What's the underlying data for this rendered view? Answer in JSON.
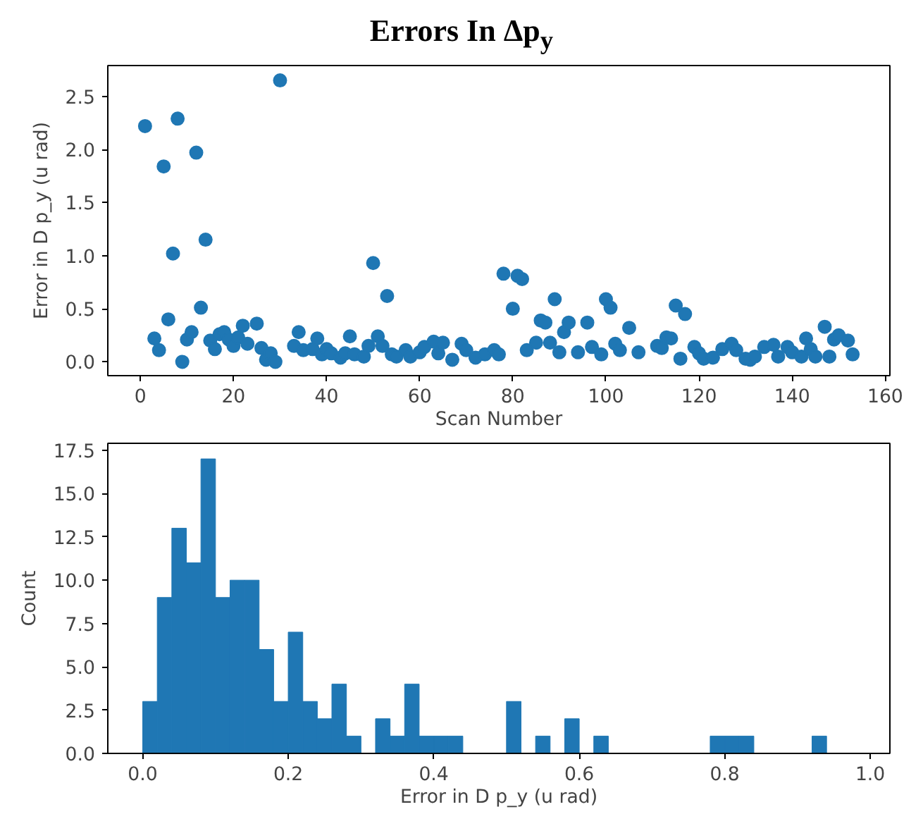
{
  "chart_data": [
    {
      "type": "scatter",
      "title": "Errors In Δp$_{y}$",
      "xlabel": "Scan Number",
      "ylabel": "Error in D p_y (u rad)",
      "marker": "circle",
      "grid": false,
      "xlim": [
        -7,
        161
      ],
      "xticks": [
        0,
        20,
        40,
        60,
        80,
        100,
        120,
        140,
        160
      ],
      "ylim": [
        -0.13,
        2.79
      ],
      "yticks": [
        {
          "value": 0,
          "label": "0.0"
        },
        {
          "value": 0.5,
          "label": "0.5"
        },
        {
          "value": 1,
          "label": "1.0"
        },
        {
          "value": 1.5,
          "label": "1.5"
        },
        {
          "value": 2,
          "label": "2.0"
        },
        {
          "value": 2.5,
          "label": "2.5"
        }
      ],
      "series": [
        {
          "color": "#1f77b4",
          "x": [
            1,
            3,
            4,
            5,
            6,
            7,
            8,
            9,
            10,
            11,
            12,
            13,
            14,
            15,
            16,
            17,
            18,
            19,
            20,
            21,
            22,
            23,
            25,
            26,
            27,
            28,
            29,
            30,
            33,
            34,
            35,
            37,
            38,
            39,
            40,
            41,
            43,
            44,
            45,
            46,
            48,
            49,
            50,
            51,
            52,
            53,
            54,
            55,
            57,
            58,
            60,
            61,
            63,
            64,
            65,
            67,
            69,
            70,
            72,
            74,
            76,
            77,
            78,
            80,
            81,
            82,
            83,
            85,
            86,
            87,
            88,
            89,
            90,
            91,
            92,
            94,
            96,
            97,
            99,
            100,
            101,
            102,
            103,
            105,
            107,
            111,
            112,
            113,
            114,
            115,
            116,
            117,
            119,
            120,
            121,
            123,
            125,
            127,
            128,
            130,
            131,
            132,
            134,
            136,
            137,
            139,
            140,
            142,
            143,
            144,
            145,
            147,
            148,
            149,
            150,
            152,
            153
          ],
          "values": [
            2.22,
            0.22,
            0.11,
            1.84,
            0.4,
            1.02,
            2.29,
            0.0,
            0.21,
            0.28,
            1.97,
            0.51,
            1.15,
            0.2,
            0.12,
            0.26,
            0.28,
            0.21,
            0.15,
            0.23,
            0.34,
            0.17,
            0.36,
            0.13,
            0.02,
            0.08,
            0.0,
            2.65,
            0.15,
            0.28,
            0.11,
            0.12,
            0.22,
            0.07,
            0.12,
            0.08,
            0.04,
            0.08,
            0.24,
            0.07,
            0.05,
            0.15,
            0.93,
            0.24,
            0.15,
            0.62,
            0.07,
            0.05,
            0.11,
            0.05,
            0.09,
            0.14,
            0.19,
            0.08,
            0.18,
            0.02,
            0.17,
            0.11,
            0.04,
            0.07,
            0.11,
            0.07,
            0.83,
            0.5,
            0.81,
            0.78,
            0.11,
            0.18,
            0.39,
            0.37,
            0.18,
            0.59,
            0.09,
            0.28,
            0.37,
            0.09,
            0.37,
            0.14,
            0.07,
            0.59,
            0.51,
            0.17,
            0.11,
            0.32,
            0.09,
            0.15,
            0.13,
            0.23,
            0.22,
            0.53,
            0.03,
            0.45,
            0.14,
            0.08,
            0.03,
            0.04,
            0.12,
            0.17,
            0.11,
            0.03,
            0.02,
            0.05,
            0.14,
            0.16,
            0.05,
            0.14,
            0.09,
            0.05,
            0.22,
            0.12,
            0.05,
            0.33,
            0.05,
            0.21,
            0.25,
            0.2,
            0.07
          ]
        }
      ]
    },
    {
      "type": "histogram",
      "xlabel": "Error in D p_y (u rad)",
      "ylabel": "Count",
      "color": "#1f77b4",
      "grid": false,
      "xlim": [
        -0.048,
        1.027
      ],
      "xticks": [
        {
          "value": 0,
          "label": "0.0"
        },
        {
          "value": 0.2,
          "label": "0.2"
        },
        {
          "value": 0.4,
          "label": "0.4"
        },
        {
          "value": 0.6,
          "label": "0.6"
        },
        {
          "value": 0.8,
          "label": "0.8"
        },
        {
          "value": 1,
          "label": "1.0"
        }
      ],
      "ylim": [
        0,
        17.9
      ],
      "yticks": [
        {
          "value": 0,
          "label": "0.0"
        },
        {
          "value": 2.5,
          "label": "2.5"
        },
        {
          "value": 5,
          "label": "5.0"
        },
        {
          "value": 7.5,
          "label": "7.5"
        },
        {
          "value": 10,
          "label": "10.0"
        },
        {
          "value": 12.5,
          "label": "12.5"
        },
        {
          "value": 15,
          "label": "15.0"
        },
        {
          "value": 17.5,
          "label": "17.5"
        }
      ],
      "bins": [
        0,
        0.02,
        0.04,
        0.06,
        0.08,
        0.1,
        0.12,
        0.14,
        0.16,
        0.18,
        0.2,
        0.22,
        0.24,
        0.26,
        0.28,
        0.3,
        0.32,
        0.34,
        0.36,
        0.38,
        0.4,
        0.42,
        0.44,
        0.46,
        0.48,
        0.5,
        0.52,
        0.54,
        0.56,
        0.58,
        0.6,
        0.62,
        0.64,
        0.66,
        0.68,
        0.7,
        0.72,
        0.74,
        0.76,
        0.78,
        0.8,
        0.82,
        0.84,
        0.86,
        0.88,
        0.9,
        0.92,
        0.94
      ],
      "values": [
        3,
        9,
        13,
        11,
        17,
        9,
        10,
        10,
        6,
        3,
        7,
        3,
        2,
        4,
        1,
        0,
        2,
        1,
        4,
        1,
        1,
        1,
        0,
        0,
        0,
        3,
        0,
        1,
        0,
        2,
        0,
        1,
        0,
        0,
        0,
        0,
        0,
        0,
        0,
        1,
        1,
        1,
        0,
        0,
        0,
        0,
        1
      ]
    }
  ]
}
